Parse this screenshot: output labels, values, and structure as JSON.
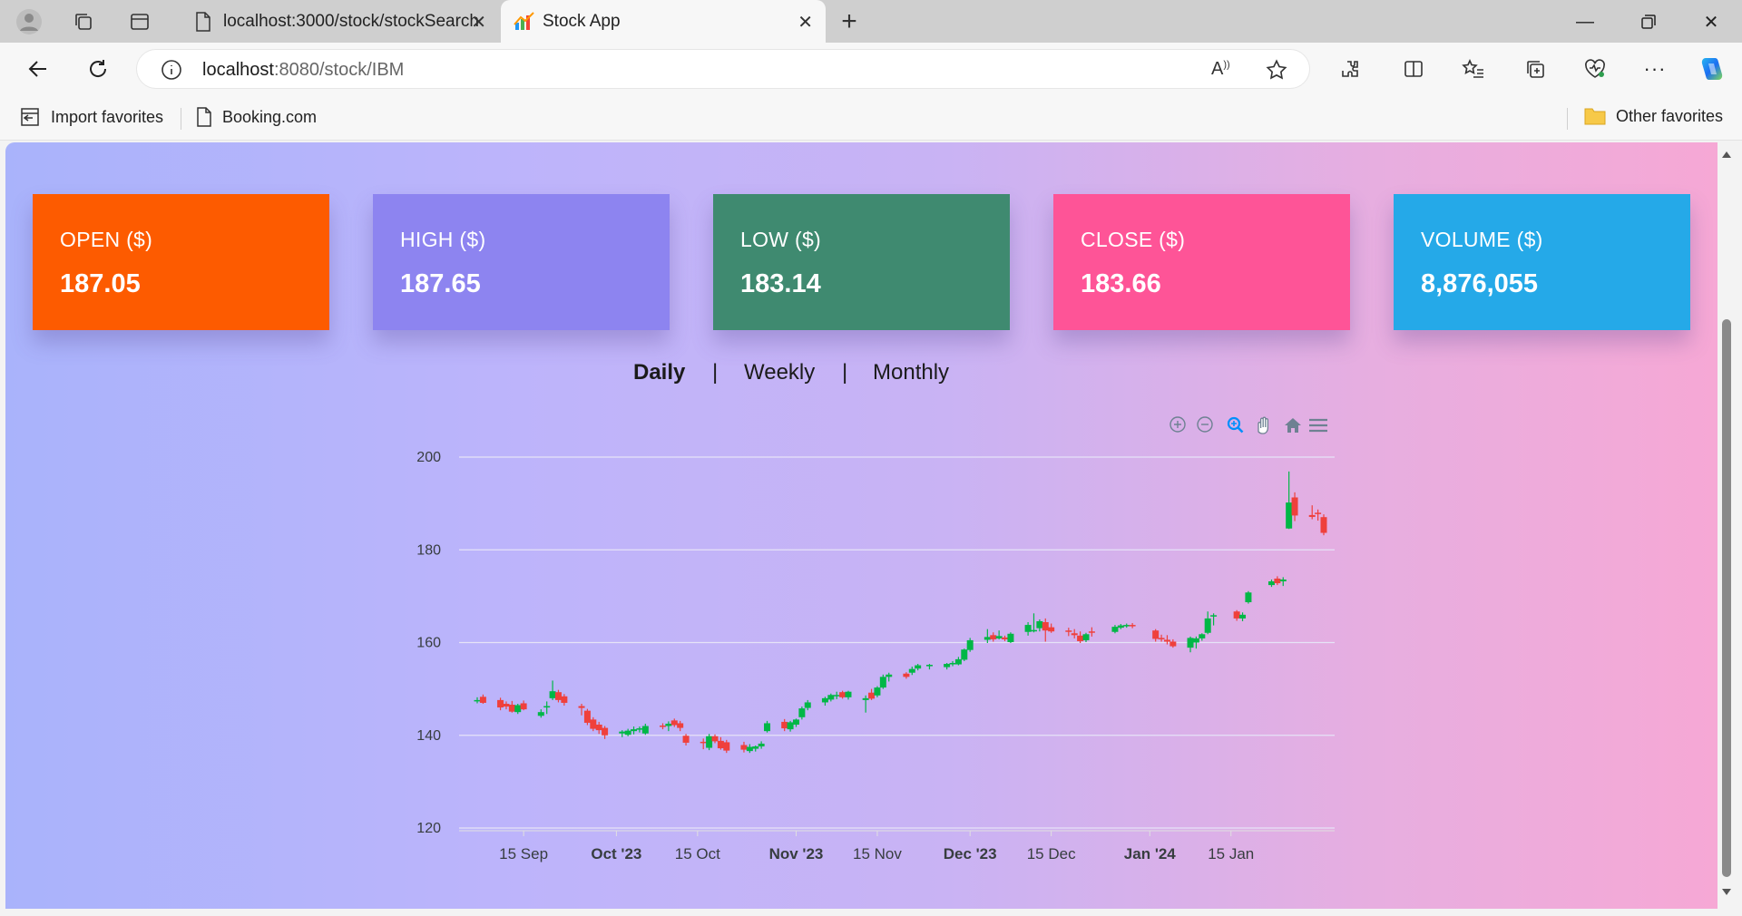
{
  "browser": {
    "tabs": [
      {
        "title": "localhost:3000/stock/stockSearch",
        "active": false
      },
      {
        "title": "Stock App",
        "active": true
      }
    ],
    "address": {
      "host": "localhost",
      "rest": ":8080/stock/IBM"
    },
    "bookmarks": [
      {
        "label": "Import favorites",
        "icon": "import-icon"
      },
      {
        "label": "Booking.com",
        "icon": "page-icon"
      }
    ],
    "other_favorites": "Other favorites"
  },
  "cards": [
    {
      "label": "OPEN ($)",
      "value": "187.05",
      "color": "#fd5b00"
    },
    {
      "label": "HIGH ($)",
      "value": "187.65",
      "color": "#8d84f0"
    },
    {
      "label": "LOW ($)",
      "value": "183.14",
      "color": "#3f8a70"
    },
    {
      "label": "CLOSE ($)",
      "value": "183.66",
      "color": "#fe5497"
    },
    {
      "label": "VOLUME ($)",
      "value": "8,876,055",
      "color": "#25a9e8"
    }
  ],
  "periods": {
    "daily": "Daily",
    "sep": "|",
    "weekly": "Weekly",
    "monthly": "Monthly",
    "selected": "Daily"
  },
  "chart_toolbar": [
    "zoom-in-icon",
    "zoom-out-icon",
    "selection-zoom-icon",
    "pan-hand-icon",
    "reset-home-icon",
    "menu-icon"
  ],
  "chart_data": {
    "type": "candlestick",
    "ylim": [
      120,
      200
    ],
    "yticks": [
      120,
      140,
      160,
      180,
      200
    ],
    "xticks": [
      {
        "label": "15 Sep",
        "bold": false,
        "date": "2023-09-15"
      },
      {
        "label": "Oct '23",
        "bold": true,
        "date": "2023-10-01"
      },
      {
        "label": "15 Oct",
        "bold": false,
        "date": "2023-10-15"
      },
      {
        "label": "Nov '23",
        "bold": true,
        "date": "2023-11-01"
      },
      {
        "label": "15 Nov",
        "bold": false,
        "date": "2023-11-15"
      },
      {
        "label": "Dec '23",
        "bold": true,
        "date": "2023-12-01"
      },
      {
        "label": "15 Dec",
        "bold": false,
        "date": "2023-12-15"
      },
      {
        "label": "Jan '24",
        "bold": true,
        "date": "2024-01-01"
      },
      {
        "label": "15 Jan",
        "bold": false,
        "date": "2024-01-15"
      }
    ],
    "up_color": "#00b746",
    "down_color": "#ef403c",
    "candles": [
      {
        "date": "2023-09-07",
        "o": 147.4,
        "h": 148.2,
        "l": 146.9,
        "c": 147.6
      },
      {
        "date": "2023-09-08",
        "o": 148.3,
        "h": 148.8,
        "l": 146.8,
        "c": 147.0
      },
      {
        "date": "2023-09-11",
        "o": 147.6,
        "h": 148.1,
        "l": 145.4,
        "c": 146.0
      },
      {
        "date": "2023-09-12",
        "o": 146.8,
        "h": 147.3,
        "l": 145.6,
        "c": 146.2
      },
      {
        "date": "2023-09-13",
        "o": 146.6,
        "h": 147.4,
        "l": 144.9,
        "c": 145.1
      },
      {
        "date": "2023-09-14",
        "o": 145.0,
        "h": 146.8,
        "l": 144.6,
        "c": 146.5
      },
      {
        "date": "2023-09-15",
        "o": 146.9,
        "h": 147.5,
        "l": 145.4,
        "c": 145.6
      },
      {
        "date": "2023-09-18",
        "o": 144.2,
        "h": 145.6,
        "l": 143.8,
        "c": 145.0
      },
      {
        "date": "2023-09-19",
        "o": 146.0,
        "h": 147.3,
        "l": 144.6,
        "c": 146.3
      },
      {
        "date": "2023-09-20",
        "o": 148.0,
        "h": 151.8,
        "l": 147.6,
        "c": 149.5
      },
      {
        "date": "2023-09-21",
        "o": 149.3,
        "h": 149.8,
        "l": 147.1,
        "c": 147.6
      },
      {
        "date": "2023-09-22",
        "o": 148.4,
        "h": 148.9,
        "l": 146.4,
        "c": 147.0
      },
      {
        "date": "2023-09-25",
        "o": 146.3,
        "h": 146.8,
        "l": 144.3,
        "c": 145.9
      },
      {
        "date": "2023-09-26",
        "o": 145.3,
        "h": 145.7,
        "l": 142.2,
        "c": 142.7
      },
      {
        "date": "2023-09-27",
        "o": 143.4,
        "h": 143.9,
        "l": 140.9,
        "c": 141.4
      },
      {
        "date": "2023-09-28",
        "o": 142.3,
        "h": 142.9,
        "l": 140.3,
        "c": 141.1
      },
      {
        "date": "2023-09-29",
        "o": 141.6,
        "h": 142.0,
        "l": 139.2,
        "c": 140.0
      },
      {
        "date": "2023-10-02",
        "o": 140.4,
        "h": 141.1,
        "l": 139.6,
        "c": 140.8
      },
      {
        "date": "2023-10-03",
        "o": 140.1,
        "h": 141.4,
        "l": 139.8,
        "c": 141.0
      },
      {
        "date": "2023-10-04",
        "o": 140.9,
        "h": 141.9,
        "l": 140.2,
        "c": 141.3
      },
      {
        "date": "2023-10-05",
        "o": 141.3,
        "h": 141.9,
        "l": 140.6,
        "c": 141.5
      },
      {
        "date": "2023-10-06",
        "o": 140.4,
        "h": 142.5,
        "l": 140.1,
        "c": 142.0
      },
      {
        "date": "2023-10-09",
        "o": 142.1,
        "h": 142.6,
        "l": 141.3,
        "c": 142.0
      },
      {
        "date": "2023-10-10",
        "o": 142.0,
        "h": 143.0,
        "l": 140.9,
        "c": 142.5
      },
      {
        "date": "2023-10-11",
        "o": 143.2,
        "h": 143.6,
        "l": 141.8,
        "c": 142.2
      },
      {
        "date": "2023-10-12",
        "o": 142.6,
        "h": 143.1,
        "l": 140.9,
        "c": 141.6
      },
      {
        "date": "2023-10-13",
        "o": 139.9,
        "h": 140.3,
        "l": 137.8,
        "c": 138.4
      },
      {
        "date": "2023-10-16",
        "o": 138.6,
        "h": 139.3,
        "l": 137.0,
        "c": 138.5
      },
      {
        "date": "2023-10-17",
        "o": 137.3,
        "h": 140.3,
        "l": 136.8,
        "c": 139.8
      },
      {
        "date": "2023-10-18",
        "o": 139.8,
        "h": 140.2,
        "l": 138.3,
        "c": 138.7
      },
      {
        "date": "2023-10-19",
        "o": 138.8,
        "h": 139.6,
        "l": 136.9,
        "c": 137.2
      },
      {
        "date": "2023-10-20",
        "o": 138.5,
        "h": 139.0,
        "l": 136.2,
        "c": 136.7
      },
      {
        "date": "2023-10-23",
        "o": 137.9,
        "h": 138.6,
        "l": 136.3,
        "c": 136.9
      },
      {
        "date": "2023-10-24",
        "o": 136.6,
        "h": 138.1,
        "l": 136.2,
        "c": 137.5
      },
      {
        "date": "2023-10-25",
        "o": 137.1,
        "h": 137.8,
        "l": 136.5,
        "c": 137.6
      },
      {
        "date": "2023-10-26",
        "o": 137.6,
        "h": 138.7,
        "l": 137.1,
        "c": 138.2
      },
      {
        "date": "2023-10-27",
        "o": 140.9,
        "h": 143.1,
        "l": 140.6,
        "c": 142.6
      },
      {
        "date": "2023-10-30",
        "o": 142.9,
        "h": 143.5,
        "l": 140.9,
        "c": 141.5
      },
      {
        "date": "2023-10-31",
        "o": 141.3,
        "h": 143.1,
        "l": 140.8,
        "c": 142.8
      },
      {
        "date": "2023-11-01",
        "o": 142.3,
        "h": 143.6,
        "l": 141.8,
        "c": 143.4
      },
      {
        "date": "2023-11-02",
        "o": 143.9,
        "h": 146.2,
        "l": 143.4,
        "c": 145.8
      },
      {
        "date": "2023-11-03",
        "o": 145.9,
        "h": 147.6,
        "l": 145.4,
        "c": 147.1
      },
      {
        "date": "2023-11-06",
        "o": 147.1,
        "h": 148.3,
        "l": 146.4,
        "c": 148.0
      },
      {
        "date": "2023-11-07",
        "o": 147.7,
        "h": 149.0,
        "l": 147.3,
        "c": 148.7
      },
      {
        "date": "2023-11-08",
        "o": 148.6,
        "h": 149.4,
        "l": 147.8,
        "c": 148.7
      },
      {
        "date": "2023-11-09",
        "o": 149.3,
        "h": 149.6,
        "l": 147.9,
        "c": 148.2
      },
      {
        "date": "2023-11-10",
        "o": 148.2,
        "h": 149.6,
        "l": 147.7,
        "c": 149.4
      },
      {
        "date": "2023-11-13",
        "o": 147.6,
        "h": 148.6,
        "l": 144.9,
        "c": 148.0
      },
      {
        "date": "2023-11-14",
        "o": 149.2,
        "h": 150.0,
        "l": 147.6,
        "c": 147.9
      },
      {
        "date": "2023-11-15",
        "o": 148.6,
        "h": 150.6,
        "l": 148.2,
        "c": 150.3
      },
      {
        "date": "2023-11-16",
        "o": 150.3,
        "h": 153.1,
        "l": 150.0,
        "c": 152.6
      },
      {
        "date": "2023-11-17",
        "o": 152.6,
        "h": 153.5,
        "l": 151.6,
        "c": 153.1
      },
      {
        "date": "2023-11-20",
        "o": 153.3,
        "h": 153.6,
        "l": 152.2,
        "c": 152.6
      },
      {
        "date": "2023-11-21",
        "o": 153.5,
        "h": 154.8,
        "l": 153.0,
        "c": 154.3
      },
      {
        "date": "2023-11-22",
        "o": 154.4,
        "h": 155.4,
        "l": 154.0,
        "c": 155.1
      },
      {
        "date": "2023-11-24",
        "o": 154.9,
        "h": 155.4,
        "l": 154.2,
        "c": 155.2
      },
      {
        "date": "2023-11-27",
        "o": 154.7,
        "h": 155.6,
        "l": 154.2,
        "c": 155.4
      },
      {
        "date": "2023-11-28",
        "o": 155.3,
        "h": 156.0,
        "l": 154.9,
        "c": 155.6
      },
      {
        "date": "2023-11-29",
        "o": 155.3,
        "h": 156.9,
        "l": 155.1,
        "c": 156.4
      },
      {
        "date": "2023-11-30",
        "o": 156.3,
        "h": 158.7,
        "l": 156.0,
        "c": 158.5
      },
      {
        "date": "2023-12-01",
        "o": 158.4,
        "h": 161.0,
        "l": 158.0,
        "c": 160.5
      },
      {
        "date": "2023-12-04",
        "o": 160.6,
        "h": 162.9,
        "l": 159.9,
        "c": 161.2
      },
      {
        "date": "2023-12-05",
        "o": 161.6,
        "h": 162.2,
        "l": 160.2,
        "c": 160.7
      },
      {
        "date": "2023-12-06",
        "o": 160.9,
        "h": 162.6,
        "l": 160.7,
        "c": 161.4
      },
      {
        "date": "2023-12-07",
        "o": 161.1,
        "h": 161.5,
        "l": 160.3,
        "c": 160.7
      },
      {
        "date": "2023-12-08",
        "o": 160.1,
        "h": 162.2,
        "l": 159.9,
        "c": 161.9
      },
      {
        "date": "2023-12-11",
        "o": 162.3,
        "h": 164.4,
        "l": 161.5,
        "c": 163.8
      },
      {
        "date": "2023-12-12",
        "o": 162.7,
        "h": 166.3,
        "l": 162.2,
        "c": 162.7
      },
      {
        "date": "2023-12-13",
        "o": 163.1,
        "h": 165.0,
        "l": 162.4,
        "c": 164.6
      },
      {
        "date": "2023-12-14",
        "o": 164.4,
        "h": 165.2,
        "l": 160.2,
        "c": 162.6
      },
      {
        "date": "2023-12-15",
        "o": 163.3,
        "h": 164.1,
        "l": 162.1,
        "c": 162.4
      },
      {
        "date": "2023-12-18",
        "o": 162.6,
        "h": 163.2,
        "l": 161.4,
        "c": 162.3
      },
      {
        "date": "2023-12-19",
        "o": 162.0,
        "h": 162.9,
        "l": 160.9,
        "c": 161.6
      },
      {
        "date": "2023-12-20",
        "o": 161.5,
        "h": 162.4,
        "l": 159.9,
        "c": 160.3
      },
      {
        "date": "2023-12-21",
        "o": 160.5,
        "h": 162.1,
        "l": 160.1,
        "c": 161.8
      },
      {
        "date": "2023-12-22",
        "o": 162.4,
        "h": 163.3,
        "l": 161.3,
        "c": 162.2
      },
      {
        "date": "2023-12-26",
        "o": 162.3,
        "h": 163.8,
        "l": 162.0,
        "c": 163.4
      },
      {
        "date": "2023-12-27",
        "o": 163.2,
        "h": 164.0,
        "l": 162.9,
        "c": 163.7
      },
      {
        "date": "2023-12-28",
        "o": 163.6,
        "h": 164.1,
        "l": 163.2,
        "c": 163.8
      },
      {
        "date": "2023-12-29",
        "o": 163.8,
        "h": 164.2,
        "l": 163.1,
        "c": 163.6
      },
      {
        "date": "2024-01-02",
        "o": 162.6,
        "h": 162.9,
        "l": 160.2,
        "c": 160.8
      },
      {
        "date": "2024-01-03",
        "o": 161.0,
        "h": 161.7,
        "l": 160.2,
        "c": 160.7
      },
      {
        "date": "2024-01-04",
        "o": 160.6,
        "h": 161.6,
        "l": 159.6,
        "c": 160.2
      },
      {
        "date": "2024-01-05",
        "o": 160.2,
        "h": 160.7,
        "l": 158.9,
        "c": 159.2
      },
      {
        "date": "2024-01-08",
        "o": 158.9,
        "h": 161.3,
        "l": 157.9,
        "c": 161.0
      },
      {
        "date": "2024-01-09",
        "o": 160.0,
        "h": 161.3,
        "l": 158.7,
        "c": 160.9
      },
      {
        "date": "2024-01-10",
        "o": 160.9,
        "h": 162.0,
        "l": 160.4,
        "c": 161.8
      },
      {
        "date": "2024-01-11",
        "o": 162.1,
        "h": 166.7,
        "l": 161.8,
        "c": 165.2
      },
      {
        "date": "2024-01-12",
        "o": 165.9,
        "h": 166.3,
        "l": 163.7,
        "c": 165.9
      },
      {
        "date": "2024-01-16",
        "o": 166.7,
        "h": 167.0,
        "l": 164.7,
        "c": 165.2
      },
      {
        "date": "2024-01-17",
        "o": 165.2,
        "h": 166.5,
        "l": 164.6,
        "c": 166.0
      },
      {
        "date": "2024-01-18",
        "o": 168.7,
        "h": 171.1,
        "l": 168.4,
        "c": 170.8
      },
      {
        "date": "2024-01-22",
        "o": 172.4,
        "h": 173.6,
        "l": 172.0,
        "c": 173.2
      },
      {
        "date": "2024-01-23",
        "o": 173.8,
        "h": 174.3,
        "l": 172.4,
        "c": 172.8
      },
      {
        "date": "2024-01-24",
        "o": 173.2,
        "h": 174.1,
        "l": 172.2,
        "c": 173.6
      },
      {
        "date": "2024-01-25",
        "o": 184.6,
        "h": 196.9,
        "l": 184.5,
        "c": 190.2
      },
      {
        "date": "2024-01-26",
        "o": 191.3,
        "h": 192.4,
        "l": 186.2,
        "c": 187.4
      },
      {
        "date": "2024-01-29",
        "o": 187.5,
        "h": 189.6,
        "l": 186.6,
        "c": 187.1
      },
      {
        "date": "2024-01-30",
        "o": 188.0,
        "h": 188.7,
        "l": 186.3,
        "c": 187.8
      },
      {
        "date": "2024-01-31",
        "o": 187.05,
        "h": 187.65,
        "l": 183.14,
        "c": 183.66
      }
    ]
  }
}
